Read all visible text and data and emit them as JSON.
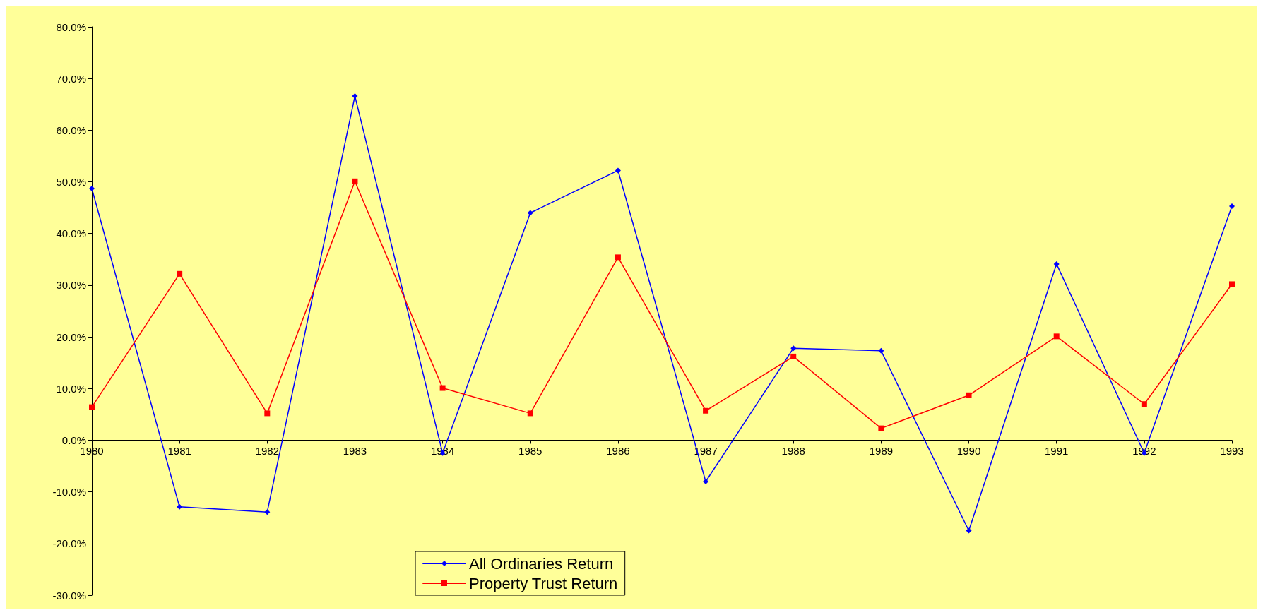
{
  "chart_data": {
    "type": "line",
    "categories": [
      "1980",
      "1981",
      "1982",
      "1983",
      "1984",
      "1985",
      "1986",
      "1987",
      "1988",
      "1989",
      "1990",
      "1991",
      "1992",
      "1993"
    ],
    "series": [
      {
        "name": "All Ordinaries Return",
        "color": "#0000ff",
        "marker": "diamond",
        "values": [
          48.7,
          -12.9,
          -13.9,
          66.6,
          -2.5,
          44.0,
          52.2,
          -8.0,
          17.8,
          17.3,
          -17.5,
          34.1,
          -2.5,
          45.3
        ]
      },
      {
        "name": "Property Trust Return",
        "color": "#ff0000",
        "marker": "square",
        "values": [
          6.4,
          32.2,
          5.2,
          50.1,
          10.1,
          5.2,
          35.4,
          5.7,
          16.2,
          2.3,
          8.7,
          20.1,
          7.0,
          30.2
        ]
      }
    ],
    "ylim": [
      -30,
      80
    ],
    "yticks": [
      {
        "value": -30,
        "label": "-30.0%"
      },
      {
        "value": -20,
        "label": "-20.0%"
      },
      {
        "value": -10,
        "label": "-10.0%"
      },
      {
        "value": 0,
        "label": "0.0%"
      },
      {
        "value": 10,
        "label": "10.0%"
      },
      {
        "value": 20,
        "label": "20.0%"
      },
      {
        "value": 30,
        "label": "30.0%"
      },
      {
        "value": 40,
        "label": "40.0%"
      },
      {
        "value": 50,
        "label": "50.0%"
      },
      {
        "value": 60,
        "label": "60.0%"
      },
      {
        "value": 70,
        "label": "70.0%"
      },
      {
        "value": 80,
        "label": "80.0%"
      }
    ],
    "legend": "bottom",
    "line_style": "solid"
  }
}
